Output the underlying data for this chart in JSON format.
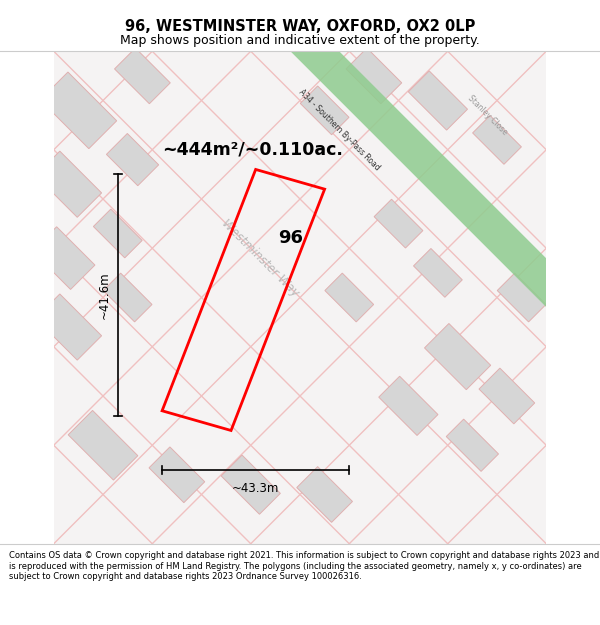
{
  "title": "96, WESTMINSTER WAY, OXFORD, OX2 0LP",
  "subtitle": "Map shows position and indicative extent of the property.",
  "footer": "Contains OS data © Crown copyright and database right 2021. This information is subject to Crown copyright and database rights 2023 and is reproduced with the permission of HM Land Registry. The polygons (including the associated geometry, namely x, y co-ordinates) are subject to Crown copyright and database rights 2023 Ordnance Survey 100026316.",
  "area_label": "~444m²/~0.110ac.",
  "plot_number": "96",
  "dim_width": "~43.3m",
  "dim_height": "~41.6m",
  "road_green_color": "#8fcc8f",
  "plot_color": "#ff0000",
  "plot_lw": 2.0,
  "title_color": "#000000",
  "footer_color": "#000000",
  "dim_color": "#000000",
  "bg_color": "#ffffff",
  "map_area_bg": "#f5f3f3",
  "block_color": "#d6d6d6",
  "block_edge": "#e0b0b0",
  "street_color": "#f0c0c0",
  "street_lw": 1.0
}
